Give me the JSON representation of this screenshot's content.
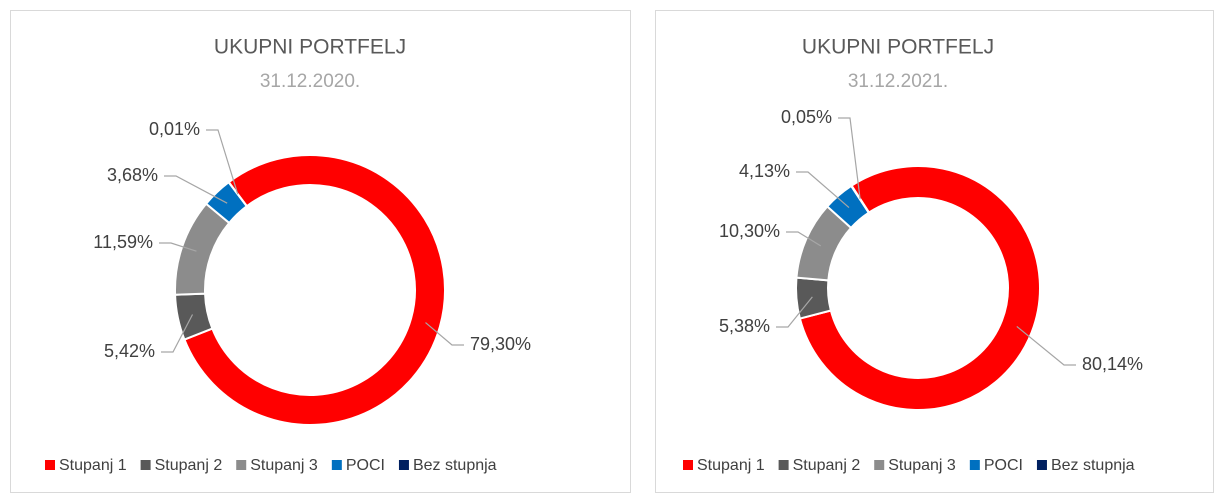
{
  "chart_data": [
    {
      "type": "donut",
      "title": "UKUPNI PORTFELJ",
      "subtitle": "31.12.2020.",
      "categories": [
        "Stupanj 1",
        "Stupanj 2",
        "Stupanj 3",
        "POCI",
        "Bez stupnja"
      ],
      "values": [
        79.3,
        5.42,
        11.59,
        3.68,
        0.01
      ],
      "value_labels": [
        "79,30%",
        "5,42%",
        "11,59%",
        "3,68%",
        "0,01%"
      ],
      "colors": [
        "#ff0000",
        "#595959",
        "#8c8c8c",
        "#0070c0",
        "#002060"
      ],
      "legend": "bottom"
    },
    {
      "type": "donut",
      "title": "UKUPNI PORTFELJ",
      "subtitle": "31.12.2021.",
      "categories": [
        "Stupanj 1",
        "Stupanj 2",
        "Stupanj 3",
        "POCI",
        "Bez stupnja"
      ],
      "values": [
        80.14,
        5.38,
        10.3,
        4.13,
        0.05
      ],
      "value_labels": [
        "80,14%",
        "5,38%",
        "10,30%",
        "4,13%",
        "0,05%"
      ],
      "colors": [
        "#ff0000",
        "#595959",
        "#8c8c8c",
        "#0070c0",
        "#002060"
      ],
      "legend": "bottom"
    }
  ]
}
